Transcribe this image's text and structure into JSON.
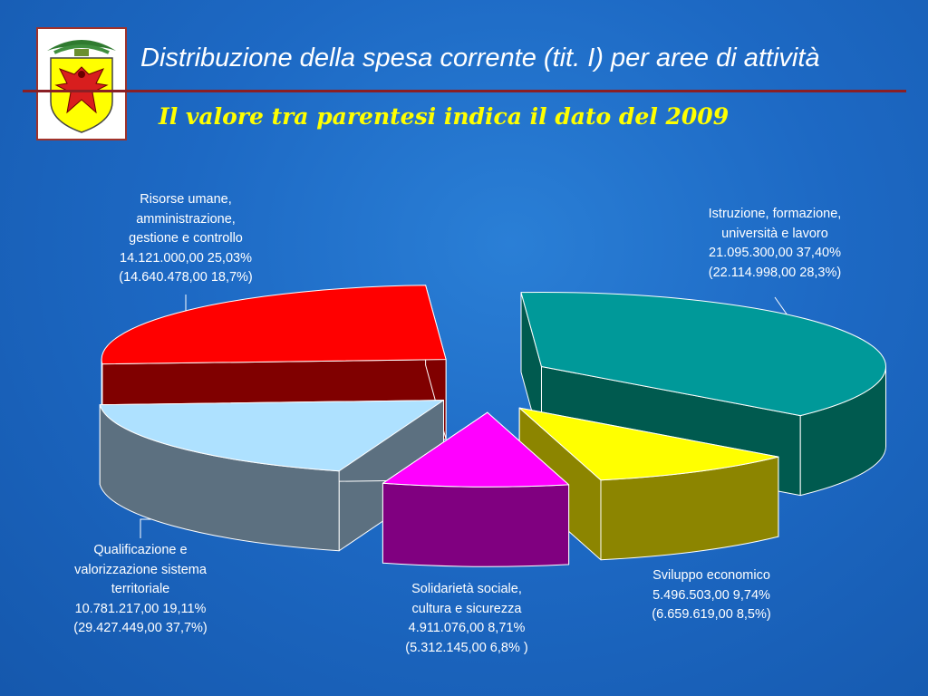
{
  "header": {
    "title": "Distribuzione della spesa corrente (tit. I) per aree di attività",
    "subtitle": "Il valore tra parentesi indica il dato del 2009"
  },
  "logo": {
    "icon": "eagle-coat-of-arms-icon",
    "colors": {
      "shield": "#ffff00",
      "eagle": "#d81e1e",
      "crown": "#2f7a2f",
      "border": "#a0322a"
    }
  },
  "chart_data": {
    "type": "pie",
    "style": "3d-exploded",
    "slices": [
      {
        "key": "istruzione",
        "name": [
          "Istruzione, formazione,",
          "università e lavoro"
        ],
        "value": 21095300.0,
        "value_label": "21.095.300,00",
        "percent": 37.4,
        "percent_label": "37,40%",
        "prev_value": 22114998.0,
        "prev_label": "(22.114.998,00   28,3%)",
        "prev_percent": 28.3,
        "color_top": "#009999",
        "color_side": "#005a4f"
      },
      {
        "key": "sviluppo",
        "name": [
          "Sviluppo economico"
        ],
        "value": 5496503.0,
        "value_label": "5.496.503,00",
        "percent": 9.74,
        "percent_label": "9,74%",
        "prev_value": 6659619.0,
        "prev_label": "(6.659.619,00   8,5%)",
        "prev_percent": 8.5,
        "color_top": "#ffff00",
        "color_side": "#8c8500"
      },
      {
        "key": "solidarieta",
        "name": [
          "Solidarietà sociale,",
          "cultura e sicurezza"
        ],
        "value": 4911076.0,
        "value_label": "4.911.076,00",
        "percent": 8.71,
        "percent_label": "8,71%",
        "prev_value": 5312145.0,
        "prev_label": "(5.312.145,00   6,8% )",
        "prev_percent": 6.8,
        "color_top": "#ff00ff",
        "color_side": "#800080"
      },
      {
        "key": "qualificazione",
        "name": [
          "Qualificazione e",
          "valorizzazione sistema",
          "territoriale"
        ],
        "value": 10781217.0,
        "value_label": "10.781.217,00",
        "percent": 19.11,
        "percent_label": "19,11%",
        "prev_value": 29427449.0,
        "prev_label": "(29.427.449,00   37,7%)",
        "prev_percent": 37.7,
        "color_top": "#aee1ff",
        "color_side": "#5c7080"
      },
      {
        "key": "risorse",
        "name": [
          "Risorse umane,",
          "amministrazione,",
          "gestione e controllo"
        ],
        "value": 14121000.0,
        "value_label": "14.121.000,00",
        "percent": 25.03,
        "percent_label": "25,03%",
        "prev_value": 14640478.0,
        "prev_label": "(14.640.478,00   18,7%)",
        "prev_percent": 18.7,
        "color_top": "#ff0000",
        "color_side": "#800000"
      }
    ]
  }
}
